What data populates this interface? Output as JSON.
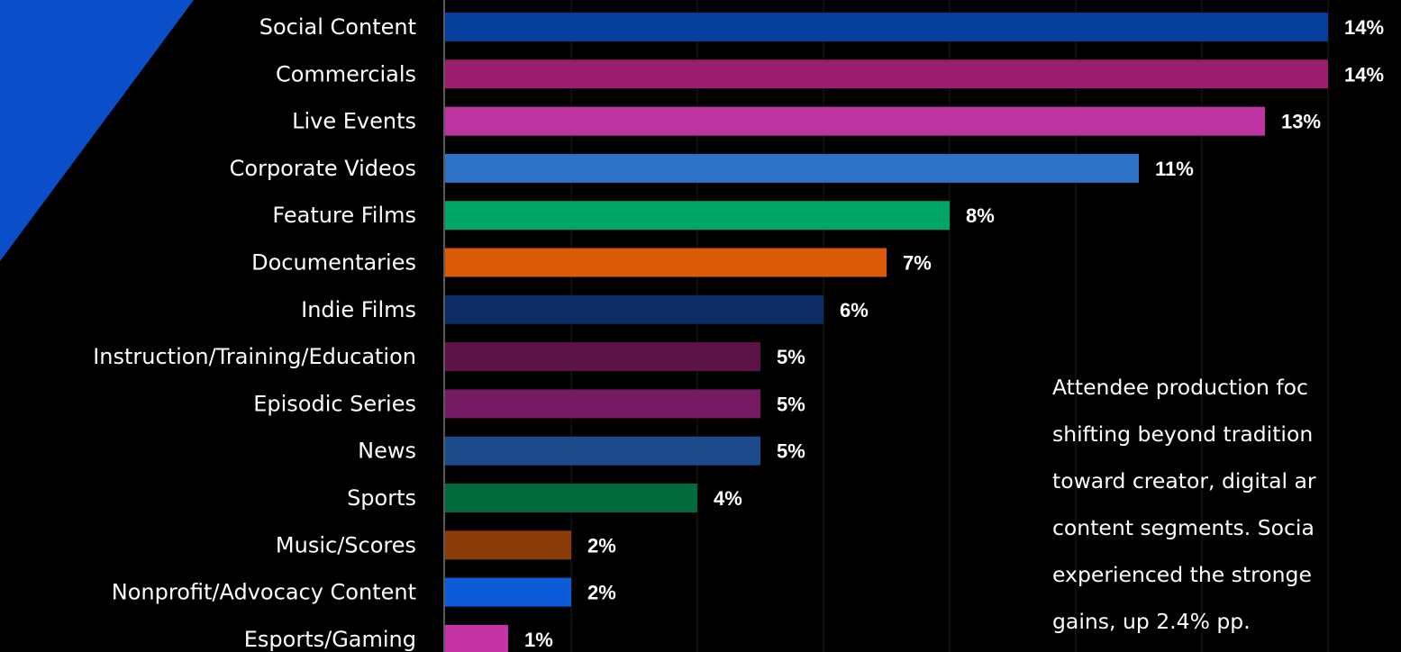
{
  "colors": {
    "background": "#000000",
    "accent_shape": "#0a4fc9"
  },
  "chart_data": {
    "type": "bar",
    "orientation": "horizontal",
    "categories": [
      "Social Content",
      "Commercials",
      "Live Events",
      "Corporate Videos",
      "Feature Films",
      "Documentaries",
      "Indie Films",
      "Instruction/Training/Education",
      "Episodic Series",
      "News",
      "Sports",
      "Music/Scores",
      "Nonprofit/Advocacy Content",
      "Esports/Gaming"
    ],
    "values": [
      14,
      14,
      13,
      11,
      8,
      7,
      6,
      5,
      5,
      5,
      4,
      2,
      2,
      1
    ],
    "value_labels": [
      "14%",
      "14%",
      "13%",
      "11%",
      "8%",
      "7%",
      "6%",
      "5%",
      "5%",
      "5%",
      "4%",
      "2%",
      "2%",
      "1%"
    ],
    "bar_colors": [
      "#053f9c",
      "#9c1c6e",
      "#bd33a0",
      "#2e72c8",
      "#00a665",
      "#da5a08",
      "#0f2b66",
      "#5c1447",
      "#761a63",
      "#1d4a8a",
      "#006a3c",
      "#8a3b08",
      "#0c5bd8",
      "#c534a5"
    ],
    "title": "",
    "xlabel": "",
    "ylabel": "",
    "xlim": [
      0,
      14
    ],
    "grid": "vertical",
    "legend": "none"
  },
  "note": {
    "lines": [
      "Attendee production foc",
      "shifting beyond tradition",
      "toward creator, digital ar",
      "content segments. Socia",
      "experienced the stronge"
    ],
    "last_line_prefix": "gains, ",
    "highlight": "up 2.4% pp."
  }
}
